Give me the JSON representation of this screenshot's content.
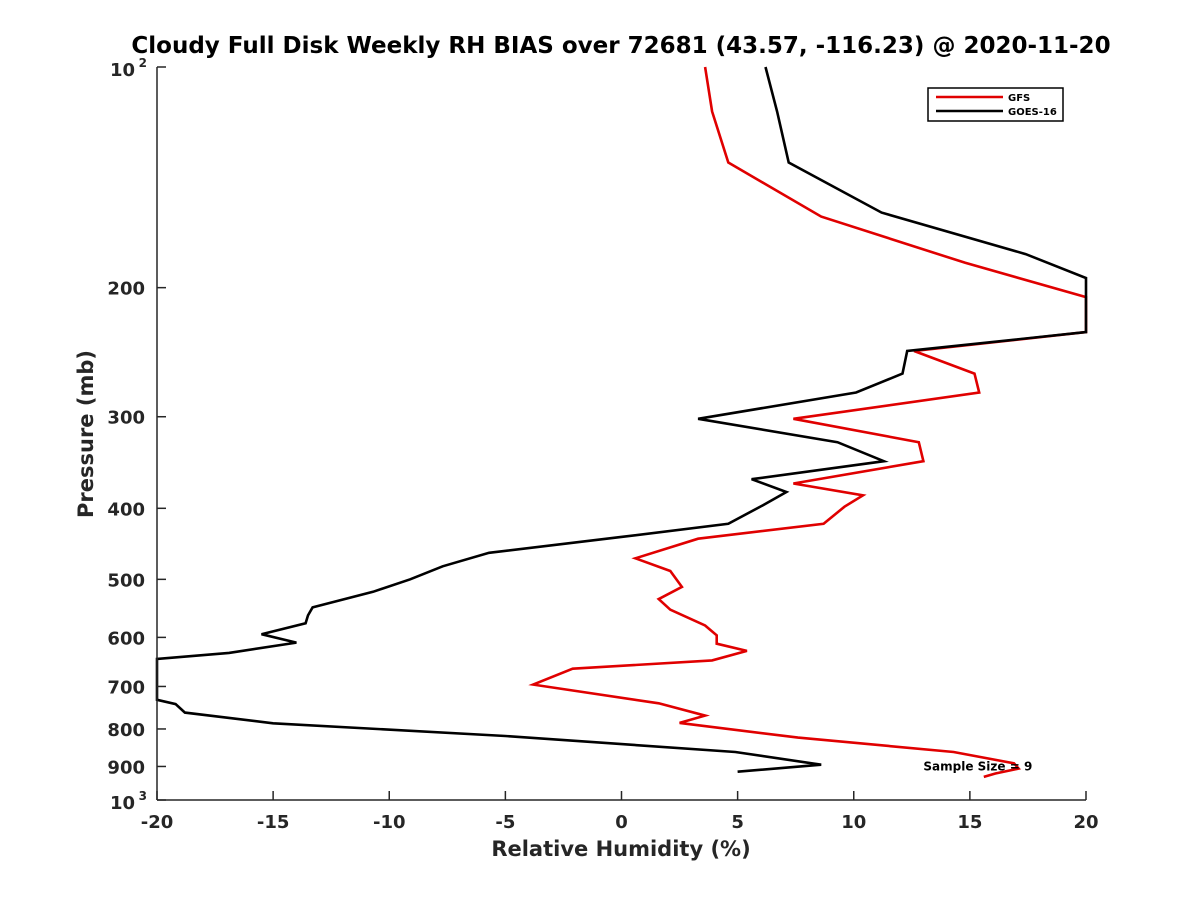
{
  "chart_data": {
    "type": "line",
    "title": "Cloudy Full Disk Weekly RH BIAS over 72681 (43.57, -116.23) @ 2020-11-20",
    "xlabel": "Relative Humidity (%)",
    "ylabel": "Pressure (mb)",
    "xlim": [
      -20,
      20
    ],
    "ylim": [
      100,
      1000
    ],
    "y_scale": "log",
    "y_reversed": true,
    "grid": false,
    "legend_position": "top-right",
    "x_ticks": [
      -20,
      -15,
      -10,
      -5,
      0,
      5,
      10,
      15,
      20
    ],
    "x_tick_labels": [
      "-20",
      "-15",
      "-10",
      "-5",
      "0",
      "5",
      "10",
      "15",
      "20"
    ],
    "y_ticks": [
      {
        "value": 100,
        "base": "10",
        "exp": "2"
      },
      {
        "value": 200,
        "label": "200"
      },
      {
        "value": 300,
        "label": "300"
      },
      {
        "value": 400,
        "label": "400"
      },
      {
        "value": 500,
        "label": "500"
      },
      {
        "value": 600,
        "label": "600"
      },
      {
        "value": 700,
        "label": "700"
      },
      {
        "value": 800,
        "label": "800"
      },
      {
        "value": 900,
        "label": "900"
      },
      {
        "value": 1000,
        "base": "10",
        "exp": "3"
      }
    ],
    "annotation": {
      "text": "Sample Size = 9",
      "x": 13.0,
      "y": 900
    },
    "series": [
      {
        "name": "GFS",
        "color": "#e00000",
        "points": [
          [
            3.6,
            100
          ],
          [
            3.9,
            115
          ],
          [
            4.6,
            135
          ],
          [
            8.6,
            160
          ],
          [
            14.8,
            185
          ],
          [
            20.0,
            206
          ],
          [
            20.0,
            230
          ],
          [
            12.6,
            244
          ],
          [
            15.2,
            262
          ],
          [
            15.4,
            278
          ],
          [
            7.4,
            302
          ],
          [
            12.8,
            325
          ],
          [
            13.0,
            345
          ],
          [
            7.4,
            370
          ],
          [
            10.4,
            384
          ],
          [
            9.6,
            398
          ],
          [
            8.7,
            420
          ],
          [
            3.3,
            440
          ],
          [
            0.6,
            468
          ],
          [
            2.1,
            487
          ],
          [
            2.6,
            512
          ],
          [
            1.6,
            532
          ],
          [
            2.1,
            550
          ],
          [
            3.6,
            578
          ],
          [
            4.1,
            596
          ],
          [
            4.1,
            612
          ],
          [
            5.4,
            626
          ],
          [
            3.9,
            645
          ],
          [
            -2.1,
            662
          ],
          [
            -3.8,
            696
          ],
          [
            1.6,
            738
          ],
          [
            3.6,
            767
          ],
          [
            2.5,
            785
          ],
          [
            7.6,
            822
          ],
          [
            14.3,
            860
          ],
          [
            16.9,
            891
          ],
          [
            17.1,
            906
          ],
          [
            16.1,
            920
          ],
          [
            15.6,
            930
          ]
        ]
      },
      {
        "name": "GOES-16",
        "color": "#000000",
        "points": [
          [
            6.2,
            100
          ],
          [
            6.7,
            115
          ],
          [
            7.2,
            135
          ],
          [
            11.2,
            158
          ],
          [
            17.4,
            180
          ],
          [
            20.0,
            194
          ],
          [
            20.0,
            230
          ],
          [
            12.3,
            244
          ],
          [
            12.1,
            262
          ],
          [
            10.1,
            278
          ],
          [
            3.3,
            302
          ],
          [
            9.3,
            325
          ],
          [
            11.3,
            345
          ],
          [
            5.6,
            365
          ],
          [
            7.1,
            380
          ],
          [
            6.1,
            396
          ],
          [
            4.6,
            420
          ],
          [
            -0.1,
            438
          ],
          [
            -5.7,
            460
          ],
          [
            -7.7,
            480
          ],
          [
            -9.1,
            500
          ],
          [
            -10.7,
            520
          ],
          [
            -13.3,
            546
          ],
          [
            -13.5,
            560
          ],
          [
            -13.6,
            574
          ],
          [
            -15.5,
            594
          ],
          [
            -14.0,
            610
          ],
          [
            -16.9,
            630
          ],
          [
            -20.0,
            642
          ],
          [
            -20.0,
            730
          ],
          [
            -19.2,
            740
          ],
          [
            -18.8,
            760
          ],
          [
            -15.0,
            786
          ],
          [
            -5.0,
            818
          ],
          [
            4.9,
            860
          ],
          [
            8.6,
            895
          ],
          [
            5.0,
            915
          ]
        ]
      }
    ]
  }
}
